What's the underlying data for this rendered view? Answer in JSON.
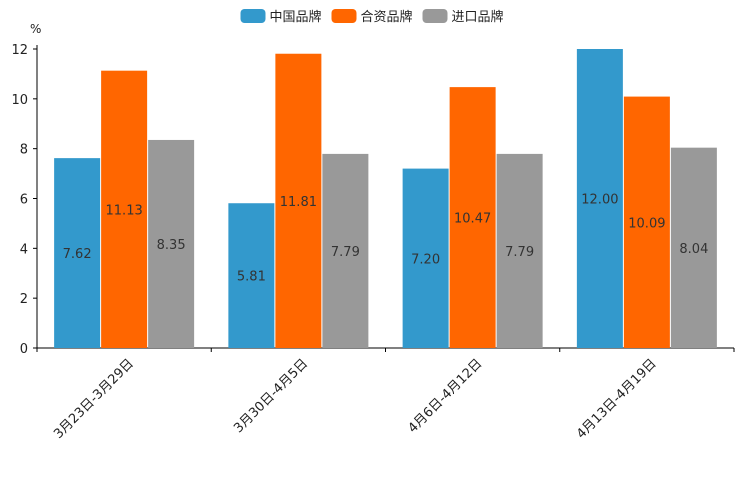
{
  "chart_data": {
    "type": "bar",
    "ylabel": "%",
    "ylim": [
      0,
      12
    ],
    "yticks": [
      0,
      2,
      4,
      6,
      8,
      10,
      12
    ],
    "categories": [
      "3月23日-3月29日",
      "3月30日-4月5日",
      "4月6日-4月12日",
      "4月13日-4月19日"
    ],
    "series": [
      {
        "name": "中国品牌",
        "color": "#3399CC",
        "values": [
          7.62,
          5.81,
          7.2,
          12.0
        ],
        "labels": [
          "7.62",
          "5.81",
          "7.20",
          "12.00"
        ]
      },
      {
        "name": "合资品牌",
        "color": "#FF6600",
        "values": [
          11.13,
          11.81,
          10.47,
          10.09
        ],
        "labels": [
          "11.13",
          "11.81",
          "10.47",
          "10.09"
        ]
      },
      {
        "name": "进口品牌",
        "color": "#999999",
        "values": [
          8.35,
          7.79,
          7.79,
          8.04
        ],
        "labels": [
          "8.35",
          "7.79",
          "7.79",
          "8.04"
        ]
      }
    ],
    "legend_position": "top-center",
    "grid": false
  }
}
